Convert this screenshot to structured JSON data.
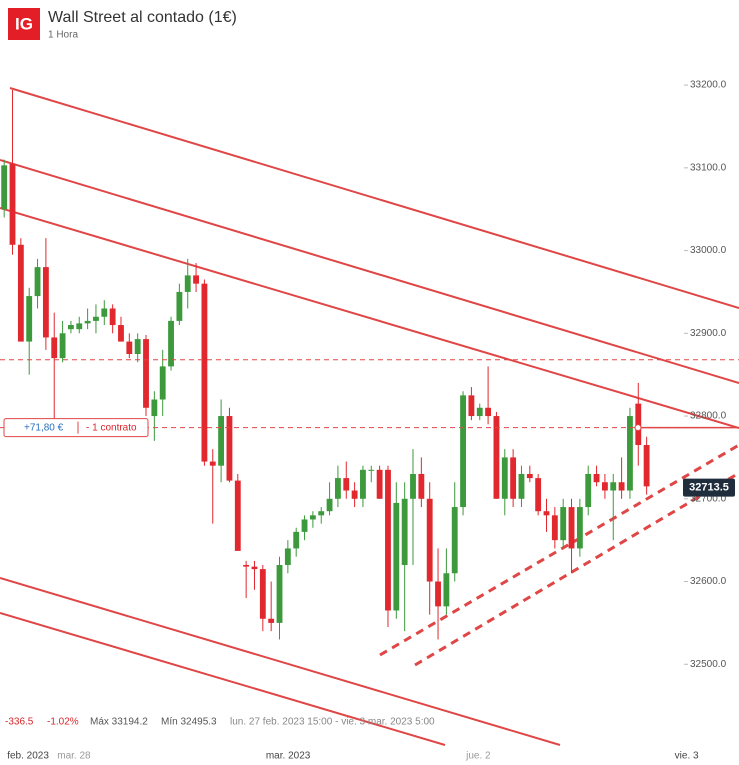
{
  "header": {
    "logo": "IG",
    "title": "Wall Street al contado (1€)",
    "subtitle": "1 Hora"
  },
  "chart_data": {
    "type": "candlestick",
    "ylim": [
      32400,
      33240
    ],
    "yticks": [
      {
        "value": 32500,
        "label": "32500.0"
      },
      {
        "value": 32600,
        "label": "32600.0"
      },
      {
        "value": 32700,
        "label": "32700.0"
      },
      {
        "value": 32800,
        "label": "32800.0"
      },
      {
        "value": 32900,
        "label": "32900.0"
      },
      {
        "value": 33000,
        "label": "33000.0"
      },
      {
        "value": 33100,
        "label": "33100.0"
      },
      {
        "value": 33200,
        "label": "33200.0"
      }
    ],
    "xlim": [
      -0.5,
      81
    ],
    "xticks": [
      {
        "value": 3,
        "label": "feb. 2023"
      },
      {
        "value": 9,
        "label": "mar. 28"
      },
      {
        "value": 34,
        "label": "mar. 2023"
      },
      {
        "value": 58,
        "label": "jue. 2"
      },
      {
        "value": 83,
        "label": "vie. 3"
      }
    ],
    "up_color": "#3c9a3c",
    "down_color": "#e0282e",
    "open": [
      33050,
      33105,
      33007,
      32890,
      32945,
      32980,
      32895,
      32870,
      32905,
      32905,
      32912,
      32915,
      32920,
      32930,
      32910,
      32890,
      32875,
      32893,
      32800,
      32820,
      32860,
      32915,
      32950,
      32970,
      32960,
      32745,
      32740,
      32800,
      32722,
      32620,
      32618,
      32615,
      32555,
      32550,
      32620,
      32640,
      32660,
      32675,
      32680,
      32685,
      32700,
      32725,
      32710,
      32700,
      32735,
      32735,
      32735,
      32565,
      32620,
      32700,
      32730,
      32700,
      32600,
      32570,
      32610,
      32690,
      32825,
      32800,
      32810,
      32800,
      32700,
      32750,
      32700,
      32730,
      32725,
      32685,
      32680,
      32650,
      32690,
      32640,
      32690,
      32730,
      32720,
      32710,
      32720,
      32710,
      32815,
      32765
    ],
    "high": [
      33110,
      33194,
      33015,
      32955,
      32990,
      33015,
      32925,
      32915,
      32915,
      32920,
      32930,
      32935,
      32940,
      32935,
      32920,
      32900,
      32900,
      32898,
      32830,
      32880,
      32920,
      32960,
      32990,
      32985,
      32965,
      32760,
      32820,
      32810,
      32730,
      32625,
      32625,
      32620,
      32600,
      32630,
      32650,
      32665,
      32680,
      32685,
      32690,
      32720,
      32740,
      32745,
      32720,
      32740,
      32740,
      32740,
      32740,
      32720,
      32720,
      32760,
      32750,
      32720,
      32640,
      32640,
      32720,
      32830,
      32835,
      32815,
      32860,
      32805,
      32760,
      32760,
      32740,
      32740,
      32730,
      32700,
      32690,
      32700,
      32700,
      32700,
      32740,
      32740,
      32730,
      32730,
      32750,
      32810,
      32840,
      32775
    ],
    "low": [
      33040,
      32995,
      32890,
      32850,
      32930,
      32880,
      32790,
      32865,
      32900,
      32900,
      32905,
      32900,
      32910,
      32900,
      32890,
      32870,
      32865,
      32800,
      32770,
      32800,
      32855,
      32910,
      32930,
      32950,
      32740,
      32670,
      32720,
      32720,
      32640,
      32580,
      32590,
      32540,
      32540,
      32530,
      32610,
      32630,
      32650,
      32665,
      32670,
      32680,
      32690,
      32700,
      32690,
      32690,
      32720,
      32700,
      32545,
      32555,
      32540,
      32620,
      32690,
      32560,
      32530,
      32560,
      32600,
      32680,
      32795,
      32795,
      32790,
      32700,
      32680,
      32690,
      32690,
      32720,
      32680,
      32660,
      32640,
      32640,
      32610,
      32630,
      32680,
      32715,
      32700,
      32650,
      32700,
      32700,
      32740,
      32705
    ],
    "close": [
      33103,
      33007,
      32890,
      32945,
      32980,
      32895,
      32870,
      32900,
      32910,
      32912,
      32915,
      32920,
      32930,
      32910,
      32890,
      32875,
      32893,
      32810,
      32820,
      32860,
      32915,
      32950,
      32970,
      32960,
      32745,
      32740,
      32800,
      32722,
      32637,
      32618,
      32615,
      32555,
      32550,
      32620,
      32640,
      32660,
      32675,
      32680,
      32685,
      32700,
      32725,
      32710,
      32700,
      32735,
      32735,
      32700,
      32565,
      32695,
      32700,
      32730,
      32700,
      32600,
      32570,
      32610,
      32690,
      32825,
      32800,
      32810,
      32800,
      32700,
      32750,
      32700,
      32730,
      32725,
      32685,
      32680,
      32650,
      32690,
      32640,
      32690,
      32730,
      32720,
      32710,
      32720,
      32710,
      32800,
      32765,
      32715
    ],
    "reference_lines": [
      32868,
      32786
    ],
    "last_price": 32713.5,
    "position": {
      "pnl": "+71,80 €",
      "size": "- 1 contrato"
    },
    "stats": {
      "change": "-336.5",
      "change_pct": "-1.02%",
      "max": "Máx 33194.2",
      "min": "Mín 32495.3",
      "range": "lun. 27 feb. 2023 15:00 - vie. 3 mar. 2023 5:00"
    }
  }
}
